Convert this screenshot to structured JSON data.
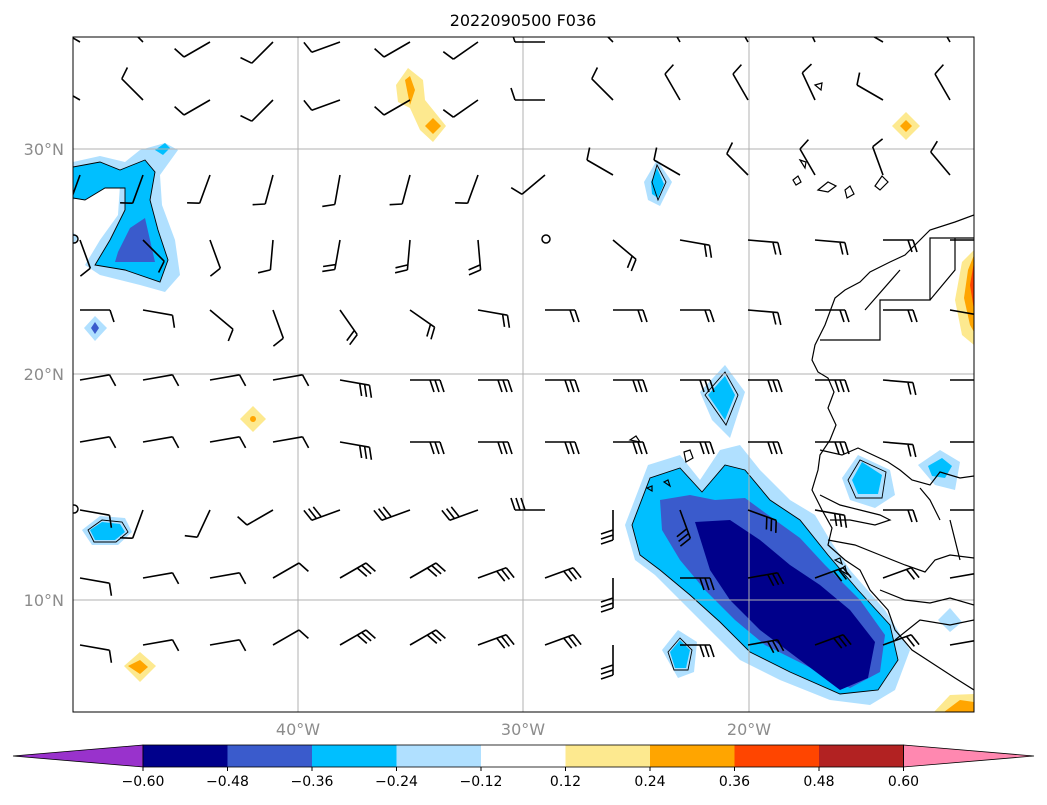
{
  "map": {
    "title": "2022090500 F036",
    "lat_labels": [
      "30°N",
      "20°N",
      "10°N"
    ],
    "lon_labels": [
      "40°W",
      "30°W",
      "20°W"
    ]
  },
  "colorbar": {
    "ticks": [
      "−0.60",
      "−0.48",
      "−0.36",
      "−0.24",
      "−0.12",
      "0.12",
      "0.24",
      "0.36",
      "0.48",
      "0.60"
    ],
    "colors": [
      "#9932cc",
      "#00008b",
      "#3a5bcc",
      "#00bfff",
      "#b0e0ff",
      "#ffffff",
      "#fde98f",
      "#ffa500",
      "#ff4500",
      "#b22222",
      "#ff88b0"
    ]
  },
  "legend_colors": {
    "land_line": "#000000",
    "grid_line": "#b0b0b0"
  }
}
